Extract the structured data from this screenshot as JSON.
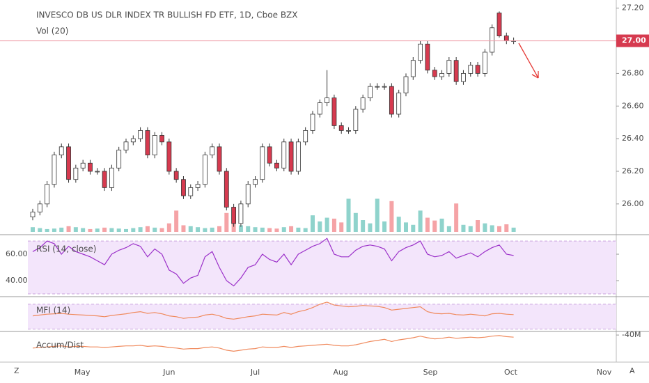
{
  "chart_data": [
    {
      "type": "candlestick",
      "title": "INVESCO DB US DLR INDEX TR BULLISH FD ETF, 1D, Cboe BZX",
      "subtitle": "Vol (20)",
      "xlim": [
        -4.56,
        81.3
      ],
      "xticks": [
        {
          "value": 6.9,
          "label": "May"
        },
        {
          "value": 19.0,
          "label": "Jun"
        },
        {
          "value": 31.0,
          "label": "Jul"
        },
        {
          "value": 42.9,
          "label": "Aug"
        },
        {
          "value": 55.4,
          "label": "Sep"
        },
        {
          "value": 66.6,
          "label": "Oct"
        },
        {
          "value": 79.6,
          "label": "Nov"
        }
      ],
      "ylim": [
        25.82,
        27.25
      ],
      "yticks": [
        {
          "value": 26.0,
          "label": "26.00"
        },
        {
          "value": 26.2,
          "label": "26.20"
        },
        {
          "value": 26.4,
          "label": "26.40"
        },
        {
          "value": 26.6,
          "label": "26.60"
        },
        {
          "value": 26.8,
          "label": "26.80"
        },
        {
          "value": 27.2,
          "label": "27.20"
        }
      ],
      "last_price": {
        "value": 27.0,
        "label": "27.00"
      },
      "up_color": "#ffffff",
      "down_color": "#d63a4f",
      "volume_up_color": "#8fd3cc",
      "volume_down_color": "#f5a3a6",
      "volume_lim": [
        0,
        100
      ],
      "ohlc": [
        [
          25.92,
          25.97,
          25.9,
          25.95
        ],
        [
          25.95,
          26.02,
          25.93,
          26.0
        ],
        [
          26.0,
          26.14,
          25.98,
          26.12
        ],
        [
          26.12,
          26.32,
          26.1,
          26.3
        ],
        [
          26.3,
          26.37,
          26.28,
          26.35
        ],
        [
          26.35,
          26.37,
          26.13,
          26.15
        ],
        [
          26.15,
          26.24,
          26.13,
          26.22
        ],
        [
          26.22,
          26.27,
          26.2,
          26.25
        ],
        [
          26.25,
          26.27,
          26.18,
          26.2
        ],
        [
          26.2,
          26.22,
          26.18,
          26.2
        ],
        [
          26.2,
          26.22,
          26.08,
          26.1
        ],
        [
          26.1,
          26.24,
          26.08,
          26.22
        ],
        [
          26.22,
          26.35,
          26.2,
          26.33
        ],
        [
          26.33,
          26.4,
          26.31,
          26.38
        ],
        [
          26.38,
          26.42,
          26.36,
          26.4
        ],
        [
          26.4,
          26.47,
          26.38,
          26.45
        ],
        [
          26.45,
          26.47,
          26.28,
          26.3
        ],
        [
          26.3,
          26.44,
          26.28,
          26.42
        ],
        [
          26.42,
          26.44,
          26.36,
          26.38
        ],
        [
          26.38,
          26.4,
          26.18,
          26.2
        ],
        [
          26.2,
          26.22,
          26.13,
          26.15
        ],
        [
          26.15,
          26.17,
          26.03,
          26.05
        ],
        [
          26.05,
          26.12,
          26.03,
          26.1
        ],
        [
          26.1,
          26.14,
          26.08,
          26.12
        ],
        [
          26.12,
          26.32,
          26.1,
          26.3
        ],
        [
          26.3,
          26.37,
          26.28,
          26.35
        ],
        [
          26.35,
          26.37,
          26.18,
          26.2
        ],
        [
          26.2,
          26.22,
          25.96,
          25.98
        ],
        [
          25.98,
          26.0,
          25.86,
          25.88
        ],
        [
          25.88,
          26.02,
          25.86,
          26.0
        ],
        [
          26.0,
          26.14,
          25.98,
          26.12
        ],
        [
          26.12,
          26.17,
          26.1,
          26.15
        ],
        [
          26.15,
          26.37,
          26.13,
          26.35
        ],
        [
          26.35,
          26.37,
          26.23,
          26.25
        ],
        [
          26.25,
          26.27,
          26.2,
          26.22
        ],
        [
          26.22,
          26.4,
          26.2,
          26.38
        ],
        [
          26.38,
          26.4,
          26.18,
          26.2
        ],
        [
          26.2,
          26.4,
          26.18,
          26.38
        ],
        [
          26.38,
          26.47,
          26.36,
          26.45
        ],
        [
          26.45,
          26.57,
          26.43,
          26.55
        ],
        [
          26.55,
          26.64,
          26.53,
          26.62
        ],
        [
          26.62,
          26.82,
          26.6,
          26.65
        ],
        [
          26.65,
          26.67,
          26.46,
          26.48
        ],
        [
          26.48,
          26.5,
          26.43,
          26.45
        ],
        [
          26.45,
          26.47,
          26.43,
          26.45
        ],
        [
          26.45,
          26.6,
          26.43,
          26.58
        ],
        [
          26.58,
          26.67,
          26.56,
          26.65
        ],
        [
          26.65,
          26.74,
          26.63,
          26.72
        ],
        [
          26.72,
          26.74,
          26.7,
          26.72
        ],
        [
          26.72,
          26.74,
          26.7,
          26.72
        ],
        [
          26.72,
          26.74,
          26.53,
          26.55
        ],
        [
          26.55,
          26.7,
          26.53,
          26.68
        ],
        [
          26.68,
          26.8,
          26.66,
          26.78
        ],
        [
          26.78,
          26.9,
          26.76,
          26.88
        ],
        [
          26.88,
          27.0,
          26.86,
          26.98
        ],
        [
          26.98,
          27.0,
          26.8,
          26.82
        ],
        [
          26.82,
          26.84,
          26.76,
          26.78
        ],
        [
          26.78,
          26.82,
          26.76,
          26.8
        ],
        [
          26.8,
          26.9,
          26.78,
          26.88
        ],
        [
          26.88,
          26.9,
          26.73,
          26.75
        ],
        [
          26.75,
          26.82,
          26.73,
          26.8
        ],
        [
          26.8,
          26.87,
          26.78,
          26.85
        ],
        [
          26.85,
          26.87,
          26.78,
          26.8
        ],
        [
          26.8,
          26.95,
          26.78,
          26.93
        ],
        [
          26.93,
          27.1,
          26.91,
          27.08
        ],
        [
          27.17,
          27.18,
          27.02,
          27.03
        ],
        [
          27.03,
          27.05,
          26.98,
          27.0
        ],
        [
          27.0,
          27.02,
          26.98,
          27.0
        ]
      ],
      "volume": [
        10,
        8,
        6,
        7,
        9,
        12,
        10,
        8,
        6,
        7,
        9,
        8,
        7,
        6,
        8,
        10,
        12,
        9,
        8,
        18,
        45,
        14,
        12,
        10,
        8,
        9,
        12,
        40,
        30,
        14,
        12,
        10,
        9,
        8,
        7,
        10,
        12,
        9,
        8,
        35,
        22,
        30,
        28,
        20,
        70,
        40,
        25,
        18,
        70,
        22,
        65,
        32,
        20,
        15,
        45,
        30,
        24,
        28,
        12,
        60,
        15,
        12,
        25,
        18,
        14,
        12,
        16,
        9
      ]
    },
    {
      "type": "line",
      "title": "RSI (14, close)",
      "color": "#9b30c9",
      "band": [
        30,
        70
      ],
      "band_color": "#f3e5fb",
      "ylim": [
        28.4,
        73.2
      ],
      "yticks": [
        {
          "value": 60,
          "label": "60.00"
        },
        {
          "value": 40,
          "label": "40.00"
        }
      ],
      "values": [
        62,
        65,
        70,
        68,
        60,
        66,
        62,
        60,
        58,
        55,
        52,
        60,
        63,
        65,
        68,
        66,
        58,
        64,
        60,
        48,
        45,
        38,
        42,
        44,
        58,
        62,
        50,
        40,
        36,
        42,
        50,
        52,
        60,
        56,
        54,
        60,
        52,
        60,
        63,
        66,
        68,
        72,
        60,
        58,
        58,
        63,
        66,
        67,
        66,
        64,
        55,
        62,
        65,
        67,
        70,
        60,
        58,
        59,
        62,
        57,
        59,
        61,
        58,
        62,
        65,
        67,
        60,
        59
      ]
    },
    {
      "type": "line",
      "title": "MFI (14)",
      "color": "#f08a5d",
      "band": [
        20,
        80
      ],
      "band_color": "#f3e5fb",
      "ylim": [
        16,
        95
      ],
      "yticks": [],
      "values": [
        52,
        54,
        56,
        57,
        58,
        56,
        55,
        54,
        53,
        52,
        50,
        53,
        55,
        57,
        60,
        62,
        58,
        60,
        57,
        52,
        50,
        46,
        48,
        49,
        54,
        56,
        52,
        46,
        44,
        47,
        50,
        52,
        56,
        55,
        54,
        60,
        56,
        62,
        66,
        72,
        80,
        85,
        78,
        76,
        74,
        75,
        77,
        76,
        75,
        72,
        66,
        68,
        70,
        72,
        74,
        62,
        58,
        57,
        58,
        55,
        54,
        56,
        54,
        52,
        57,
        58,
        56,
        55
      ]
    },
    {
      "type": "line",
      "title": "Accum/Dist",
      "color": "#f08a5d",
      "ylim": [
        -90,
        -36
      ],
      "yticks": [
        {
          "value": -40,
          "label": "-40M"
        }
      ],
      "values": [
        -64,
        -63,
        -62,
        -61,
        -60,
        -62,
        -61,
        -61,
        -62,
        -62,
        -63,
        -62,
        -61,
        -60,
        -60,
        -59,
        -61,
        -60,
        -61,
        -63,
        -64,
        -66,
        -65,
        -65,
        -63,
        -62,
        -64,
        -68,
        -70,
        -68,
        -66,
        -65,
        -62,
        -63,
        -63,
        -61,
        -63,
        -61,
        -60,
        -59,
        -58,
        -57,
        -59,
        -60,
        -60,
        -58,
        -55,
        -52,
        -50,
        -48,
        -52,
        -49,
        -47,
        -45,
        -42,
        -45,
        -47,
        -46,
        -44,
        -46,
        -45,
        -44,
        -45,
        -44,
        -42,
        -41,
        -43,
        -44
      ]
    }
  ],
  "toolbar": {
    "left": "Z",
    "right": "A"
  }
}
